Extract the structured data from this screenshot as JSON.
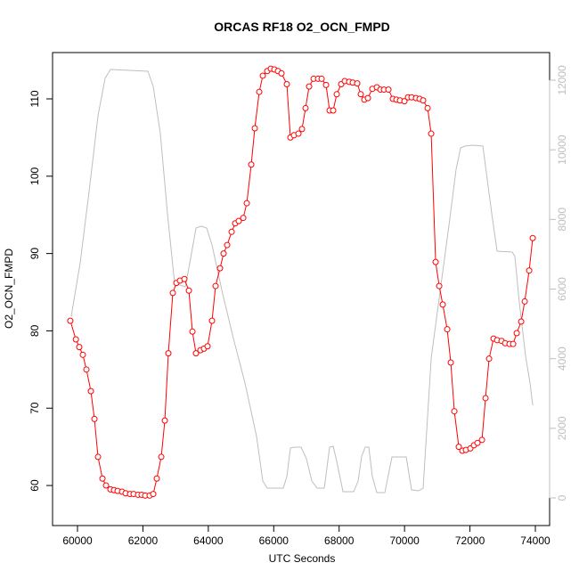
{
  "chart_data": {
    "type": "line",
    "title": "ORCAS RF18 O2_OCN_FMPD",
    "xlabel": "UTC Seconds",
    "ylabel": "O2_OCN_FMPD",
    "xlim": [
      59237,
      74436
    ],
    "ylim": [
      54.82,
      115.99
    ],
    "y2lim": [
      -793,
      12793
    ],
    "xticks": [
      60000,
      62000,
      64000,
      66000,
      68000,
      70000,
      72000,
      74000
    ],
    "yticks": [
      60,
      70,
      80,
      90,
      100,
      110
    ],
    "y2ticks": [
      0,
      2000,
      4000,
      6000,
      8000,
      10000,
      12000
    ],
    "series": [
      {
        "color": "#ff0000",
        "markers": true,
        "x": [
          59780,
          59950,
          60054,
          60163,
          60272,
          60409,
          60518,
          60627,
          60763,
          60872,
          61008,
          61117,
          61226,
          61362,
          61471,
          61607,
          61716,
          61852,
          61961,
          62070,
          62206,
          62315,
          62424,
          62561,
          62670,
          62778,
          62915,
          63024,
          63133,
          63269,
          63405,
          63514,
          63623,
          63759,
          63868,
          63977,
          64113,
          64222,
          64358,
          64467,
          64576,
          64713,
          64822,
          64930,
          65067,
          65176,
          65312,
          65421,
          65557,
          65666,
          65802,
          65911,
          66020,
          66129,
          66238,
          66401,
          66510,
          66619,
          66755,
          66864,
          66973,
          67082,
          67219,
          67355,
          67464,
          67600,
          67709,
          67818,
          67927,
          68063,
          68172,
          68308,
          68417,
          68553,
          68662,
          68771,
          68880,
          69016,
          69153,
          69262,
          69371,
          69507,
          69643,
          69752,
          69861,
          69997,
          70106,
          70215,
          70351,
          70460,
          70569,
          70706,
          70815,
          70951,
          71060,
          71169,
          71305,
          71414,
          71523,
          71659,
          71768,
          71877,
          72013,
          72122,
          72231,
          72368,
          72477,
          72585,
          72722,
          72831,
          72967,
          73076,
          73212,
          73321,
          73430,
          73566,
          73675,
          73811,
          73920
        ],
        "values": [
          81.3,
          78.9,
          77.9,
          76.9,
          75.0,
          72.2,
          68.6,
          63.7,
          60.9,
          60.0,
          59.5,
          59.4,
          59.3,
          59.2,
          59.0,
          58.9,
          58.9,
          58.8,
          58.8,
          58.7,
          58.7,
          58.9,
          60.9,
          63.7,
          68.4,
          77.1,
          84.9,
          86.2,
          86.5,
          86.7,
          85.2,
          79.9,
          77.1,
          77.5,
          77.7,
          78.0,
          81.3,
          85.8,
          88.1,
          90.0,
          91.1,
          92.8,
          93.9,
          94.2,
          94.6,
          96.5,
          101.5,
          106.2,
          110.9,
          113.0,
          113.6,
          113.9,
          113.8,
          113.6,
          113.3,
          111.9,
          105.0,
          105.3,
          105.5,
          106.1,
          108.8,
          111.6,
          112.6,
          112.6,
          112.6,
          111.8,
          108.5,
          108.5,
          110.6,
          111.9,
          112.3,
          112.2,
          112.1,
          112.0,
          110.6,
          109.9,
          110.1,
          111.3,
          111.5,
          111.2,
          111.2,
          111.2,
          110.0,
          109.9,
          109.8,
          109.7,
          110.2,
          110.2,
          110.1,
          110.0,
          109.8,
          108.8,
          105.5,
          88.9,
          85.8,
          83.4,
          80.2,
          75.9,
          69.6,
          65.0,
          64.5,
          64.6,
          64.8,
          65.2,
          65.5,
          65.9,
          71.3,
          76.4,
          79.0,
          78.8,
          78.7,
          78.4,
          78.3,
          78.3,
          79.7,
          81.2,
          83.8,
          87.8,
          92.0
        ]
      },
      {
        "color": "#bebebe",
        "axis": "y2",
        "markers": false,
        "x": [
          59809,
          60082,
          60354,
          60627,
          60844,
          61008,
          62152,
          62315,
          62533,
          62751,
          62969,
          63296,
          63459,
          63623,
          63786,
          63950,
          64113,
          64440,
          64767,
          65121,
          65475,
          65666,
          65802,
          66292,
          66401,
          66510,
          66619,
          66837,
          67001,
          67164,
          67328,
          67546,
          67709,
          67818,
          67927,
          68118,
          68444,
          68581,
          68690,
          68798,
          68907,
          69016,
          69153,
          69398,
          69616,
          70052,
          70215,
          70433,
          70569,
          70815,
          71387,
          71577,
          71714,
          71850,
          72068,
          72395,
          72667,
          72831,
          73294,
          73375,
          73511,
          73702,
          73838,
          73920
        ],
        "values": [
          5220,
          6755,
          8802,
          10977,
          12052,
          12308,
          12257,
          11822,
          10466,
          8163,
          6167,
          6065,
          6883,
          7753,
          7805,
          7753,
          7267,
          5860,
          4580,
          3301,
          1766,
          486,
          281,
          281,
          614,
          1433,
          1459,
          1459,
          1126,
          486,
          281,
          281,
          1459,
          1484,
          1049,
          179,
          179,
          486,
          1203,
          1459,
          1459,
          614,
          154,
          154,
          1177,
          1177,
          230,
          205,
          281,
          4017,
          8035,
          9442,
          10056,
          10107,
          10133,
          10107,
          8163,
          7088,
          7062,
          6934,
          5604,
          4069,
          3301,
          2661
        ]
      }
    ]
  }
}
